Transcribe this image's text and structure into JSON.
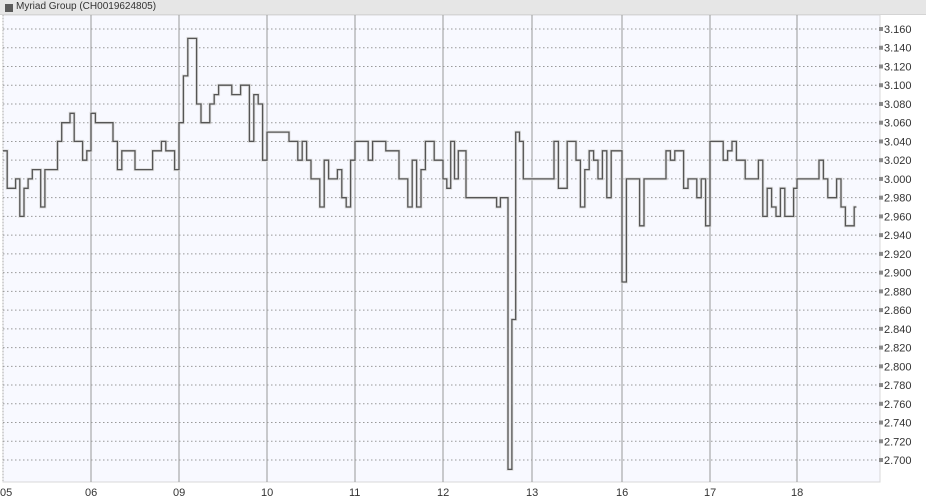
{
  "header": {
    "title": "Myriad Group (CH0019624805)"
  },
  "colors": {
    "line": "#555555",
    "plot_bg": "#f8f9ff",
    "grid": "#999999",
    "header_bg": "#e6e6e6"
  },
  "chart_data": {
    "type": "line",
    "step": true,
    "title": "Myriad Group (CH0019624805)",
    "xlabel": "",
    "ylabel": "",
    "ylim": [
      2.68,
      3.17
    ],
    "y_ticks": [
      "3.160",
      "3.140",
      "3.120",
      "3.100",
      "3.080",
      "3.060",
      "3.040",
      "3.020",
      "3.000",
      "2.980",
      "2.960",
      "2.940",
      "2.920",
      "2.900",
      "2.880",
      "2.860",
      "2.840",
      "2.820",
      "2.800",
      "2.780",
      "2.760",
      "2.740",
      "2.720",
      "2.700"
    ],
    "y_axis_position": "right",
    "grid": true,
    "days": [
      {
        "label": "05",
        "prices": [
          3.03,
          2.99,
          2.99,
          3.0,
          2.96,
          2.99,
          3.0,
          3.01,
          3.01,
          2.97,
          3.01,
          3.01,
          3.01,
          3.04,
          3.06,
          3.06,
          3.07,
          3.04,
          3.04,
          3.02,
          3.03
        ]
      },
      {
        "label": "06",
        "prices": [
          3.07,
          3.06,
          3.06,
          3.06,
          3.06,
          3.04,
          3.01,
          3.03,
          3.03,
          3.03,
          3.01,
          3.01,
          3.01,
          3.01,
          3.03,
          3.03,
          3.04,
          3.03,
          3.03,
          3.01
        ]
      },
      {
        "label": "09",
        "prices": [
          3.06,
          3.11,
          3.15,
          3.15,
          3.08,
          3.06,
          3.06,
          3.08,
          3.09,
          3.1,
          3.1,
          3.1,
          3.09,
          3.09,
          3.1,
          3.1,
          3.04,
          3.09,
          3.08,
          3.02
        ]
      },
      {
        "label": "10",
        "prices": [
          3.05,
          3.05,
          3.05,
          3.05,
          3.05,
          3.04,
          3.04,
          3.02,
          3.04,
          3.02,
          3.0,
          3.0,
          2.97,
          3.02,
          3.0,
          3.0,
          3.01,
          2.98,
          2.97,
          3.02
        ]
      },
      {
        "label": "11",
        "prices": [
          3.04,
          3.04,
          3.04,
          3.02,
          3.04,
          3.04,
          3.04,
          3.03,
          3.03,
          3.03,
          3.0,
          3.0,
          2.97,
          3.02,
          2.97,
          3.01,
          3.04,
          3.04,
          3.02,
          3.02
        ]
      },
      {
        "label": "12",
        "prices": [
          3.0,
          2.99,
          3.04,
          3.0,
          3.03,
          3.03,
          2.98,
          2.98,
          2.98,
          2.98,
          2.98,
          2.98,
          2.98,
          2.98,
          2.97,
          2.98,
          2.98,
          2.69,
          2.85,
          3.05,
          3.04,
          3.0,
          3.0
        ]
      },
      {
        "label": "13",
        "prices": [
          3.0,
          3.0,
          3.0,
          3.0,
          3.0,
          3.04,
          2.99,
          2.99,
          3.04,
          3.04,
          3.02,
          2.97,
          3.01,
          3.03,
          3.02,
          3.0,
          3.03,
          2.98,
          3.03,
          3.03
        ]
      },
      {
        "label": "16",
        "prices": [
          2.89,
          3.0,
          3.0,
          3.0,
          2.95,
          3.0,
          3.0,
          3.0,
          3.0,
          3.0,
          3.03,
          3.02,
          3.03,
          3.03,
          2.99,
          3.0,
          3.0,
          2.98,
          3.0,
          2.95
        ]
      },
      {
        "label": "17",
        "prices": [
          3.04,
          3.04,
          3.04,
          3.02,
          3.03,
          3.04,
          3.02,
          3.02,
          3.0,
          3.0,
          3.0,
          3.02,
          2.96,
          2.99,
          2.97,
          2.96,
          2.99,
          2.96,
          2.96,
          2.99
        ]
      },
      {
        "label": "18",
        "prices": [
          3.0,
          3.0,
          3.0,
          3.0,
          3.0,
          3.02,
          3.0,
          2.98,
          2.98,
          3.0,
          2.97,
          2.95,
          2.95,
          2.97
        ]
      }
    ]
  }
}
